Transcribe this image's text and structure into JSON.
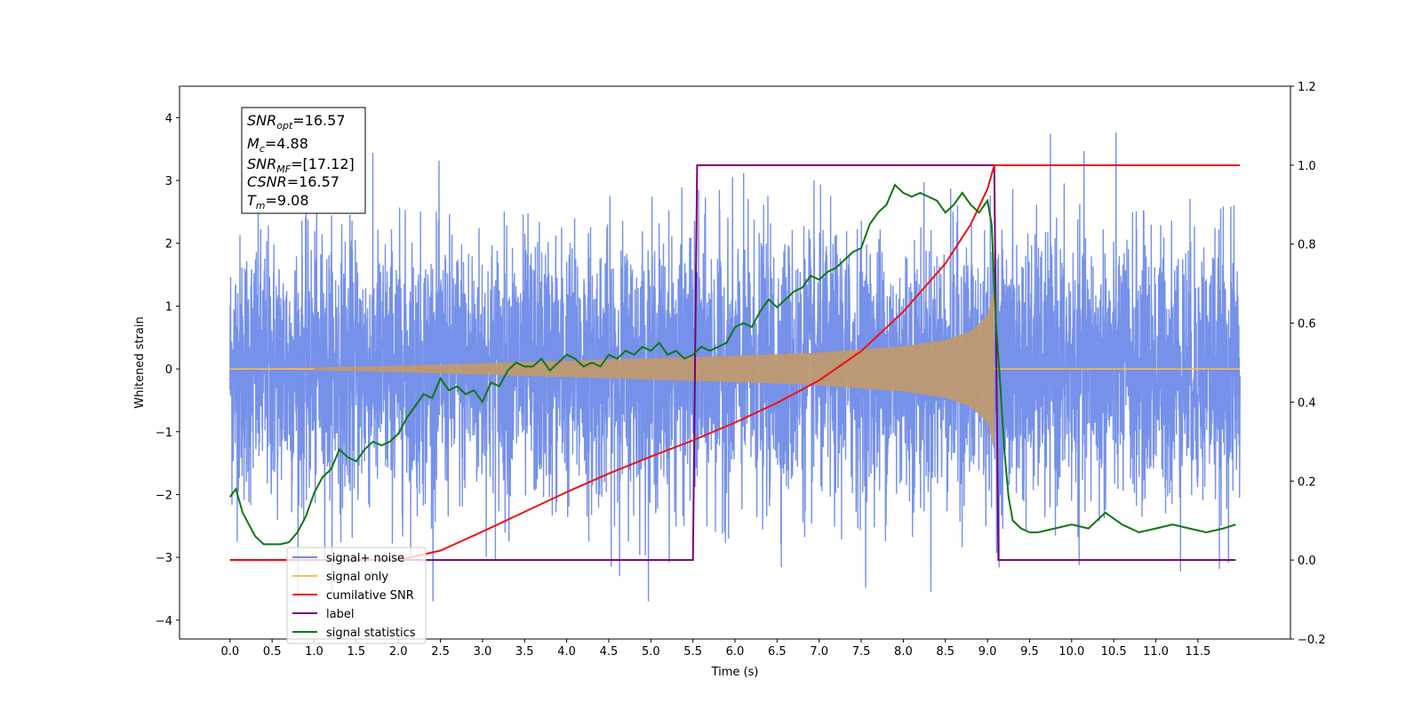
{
  "chart_data": {
    "type": "line",
    "xlabel": "Time (s)",
    "ylabel": "Whitened strain",
    "xlim": [
      -0.6,
      12.6
    ],
    "ylim": [
      -4.3,
      4.5
    ],
    "y2lim": [
      -0.2,
      1.2
    ],
    "xticks": [
      0.0,
      0.5,
      1.0,
      1.5,
      2.0,
      2.5,
      3.0,
      3.5,
      4.0,
      4.5,
      5.0,
      5.5,
      6.0,
      6.5,
      7.0,
      7.5,
      8.0,
      8.5,
      9.0,
      9.5,
      10.0,
      10.5,
      11.0,
      11.5
    ],
    "xticklabels": [
      "0.0",
      "0.5",
      "1.0",
      "1.5",
      "2.0",
      "2.5",
      "3.0",
      "3.5",
      "4.0",
      "4.5",
      "5.0",
      "5.5",
      "6.0",
      "6.5",
      "7.0",
      "7.5",
      "8.0",
      "8.5",
      "9.0",
      "9.5",
      "10.0",
      "10.5",
      "11.0",
      "11.5"
    ],
    "yticks": [
      -4,
      -3,
      -2,
      -1,
      0,
      1,
      2,
      3,
      4
    ],
    "yticklabels": [
      "−4",
      "−3",
      "−2",
      "−1",
      "0",
      "1",
      "2",
      "3",
      "4"
    ],
    "y2ticks": [
      -0.2,
      0.0,
      0.2,
      0.4,
      0.6,
      0.8,
      1.0,
      1.2
    ],
    "y2ticklabels": [
      "−0.2",
      "0.0",
      "0.2",
      "0.4",
      "0.6",
      "0.8",
      "1.0",
      "1.2"
    ],
    "legend_position": "lower-left",
    "legend": [
      {
        "label": "signal+ noise",
        "color": "#6f8be8"
      },
      {
        "label": "signal only",
        "color": "#ffbb55"
      },
      {
        "label": "cumilative SNR",
        "color": "#ee1111"
      },
      {
        "label": "label",
        "color": "#770077"
      },
      {
        "label": "signal statistics",
        "color": "#117711"
      }
    ],
    "series": [
      {
        "name": "signal+ noise",
        "axis": "left",
        "color": "#6f8be8",
        "noise_range": [
          -3.7,
          4.1
        ],
        "t_start": 0.0,
        "t_end": 12.0
      },
      {
        "name": "signal only",
        "axis": "left",
        "color": "#ffbb55",
        "envelope_t": [
          0.0,
          1.0,
          2.0,
          3.0,
          4.0,
          5.0,
          6.0,
          7.0,
          8.0,
          8.5,
          8.8,
          9.0,
          9.08,
          9.1
        ],
        "envelope_amp": [
          0.0,
          0.02,
          0.05,
          0.09,
          0.13,
          0.17,
          0.21,
          0.26,
          0.36,
          0.46,
          0.6,
          0.85,
          1.3,
          0.0
        ]
      },
      {
        "name": "cumilative SNR",
        "axis": "right",
        "color": "#ee1111",
        "x": [
          0.0,
          2.0,
          2.5,
          3.0,
          3.5,
          4.0,
          4.5,
          5.0,
          5.5,
          6.0,
          6.5,
          7.0,
          7.5,
          8.0,
          8.5,
          8.8,
          9.0,
          9.08,
          9.1,
          12.0
        ],
        "values": [
          0.0,
          0.0,
          0.024,
          0.072,
          0.122,
          0.172,
          0.219,
          0.262,
          0.303,
          0.348,
          0.398,
          0.455,
          0.529,
          0.629,
          0.751,
          0.85,
          0.94,
          1.0,
          1.0,
          1.0
        ]
      },
      {
        "name": "label",
        "axis": "right",
        "color": "#770077",
        "x": [
          0.0,
          5.5,
          5.55,
          9.08,
          9.13,
          11.95
        ],
        "values": [
          0.0,
          0.0,
          1.0,
          1.0,
          0.0,
          0.0
        ]
      },
      {
        "name": "signal statistics",
        "axis": "right",
        "color": "#117711",
        "x": [
          0.0,
          0.07,
          0.15,
          0.3,
          0.4,
          0.5,
          0.6,
          0.7,
          0.8,
          0.9,
          1.0,
          1.1,
          1.2,
          1.3,
          1.4,
          1.5,
          1.6,
          1.7,
          1.8,
          1.9,
          2.0,
          2.1,
          2.2,
          2.3,
          2.4,
          2.5,
          2.6,
          2.7,
          2.8,
          2.9,
          3.0,
          3.1,
          3.2,
          3.3,
          3.4,
          3.5,
          3.6,
          3.7,
          3.8,
          3.9,
          4.0,
          4.1,
          4.2,
          4.3,
          4.4,
          4.5,
          4.6,
          4.7,
          4.8,
          4.9,
          5.0,
          5.1,
          5.2,
          5.3,
          5.4,
          5.5,
          5.6,
          5.7,
          5.8,
          5.9,
          6.0,
          6.1,
          6.2,
          6.3,
          6.4,
          6.5,
          6.6,
          6.7,
          6.8,
          6.9,
          7.0,
          7.1,
          7.2,
          7.3,
          7.4,
          7.5,
          7.6,
          7.7,
          7.8,
          7.9,
          8.0,
          8.1,
          8.2,
          8.3,
          8.4,
          8.5,
          8.6,
          8.7,
          8.8,
          8.9,
          9.0,
          9.05,
          9.1,
          9.15,
          9.2,
          9.25,
          9.3,
          9.4,
          9.5,
          9.6,
          9.8,
          10.0,
          10.2,
          10.4,
          10.6,
          10.8,
          11.0,
          11.2,
          11.4,
          11.6,
          11.8,
          11.95
        ],
        "values": [
          0.16,
          0.18,
          0.12,
          0.06,
          0.04,
          0.04,
          0.04,
          0.045,
          0.07,
          0.11,
          0.17,
          0.21,
          0.23,
          0.28,
          0.26,
          0.25,
          0.28,
          0.3,
          0.29,
          0.3,
          0.32,
          0.36,
          0.39,
          0.42,
          0.41,
          0.46,
          0.43,
          0.44,
          0.42,
          0.43,
          0.4,
          0.45,
          0.44,
          0.48,
          0.5,
          0.49,
          0.49,
          0.51,
          0.48,
          0.5,
          0.52,
          0.51,
          0.49,
          0.5,
          0.49,
          0.52,
          0.51,
          0.53,
          0.52,
          0.54,
          0.53,
          0.55,
          0.52,
          0.53,
          0.51,
          0.52,
          0.54,
          0.53,
          0.54,
          0.55,
          0.59,
          0.6,
          0.59,
          0.63,
          0.66,
          0.64,
          0.66,
          0.68,
          0.69,
          0.72,
          0.71,
          0.73,
          0.74,
          0.76,
          0.78,
          0.79,
          0.85,
          0.88,
          0.9,
          0.95,
          0.93,
          0.92,
          0.93,
          0.92,
          0.91,
          0.88,
          0.9,
          0.93,
          0.9,
          0.88,
          0.91,
          0.85,
          0.6,
          0.45,
          0.28,
          0.16,
          0.1,
          0.08,
          0.07,
          0.07,
          0.08,
          0.09,
          0.08,
          0.12,
          0.09,
          0.07,
          0.08,
          0.09,
          0.08,
          0.07,
          0.08,
          0.09
        ]
      }
    ]
  },
  "annotation": {
    "lines": [
      {
        "main": "SNR",
        "sub": "opt",
        "rest": "=16.57"
      },
      {
        "main": "M",
        "sub": "c",
        "rest": "=4.88"
      },
      {
        "main": "SNR",
        "sub": "MF",
        "rest": "=[17.12]"
      },
      {
        "main": "CSNR",
        "sub": "",
        "rest": "=16.57"
      },
      {
        "main": "T",
        "sub": "m",
        "rest": "=9.08"
      }
    ]
  }
}
